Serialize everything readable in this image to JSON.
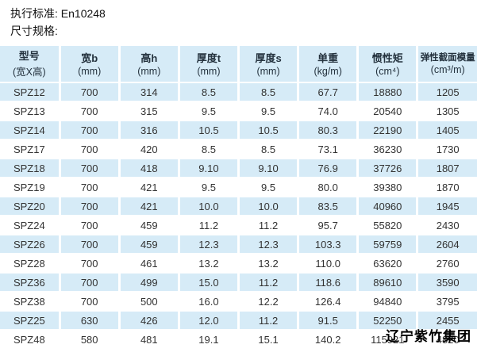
{
  "header": {
    "standard": "执行标准: En10248",
    "spec_title": "尺寸规格:"
  },
  "table": {
    "columns": [
      {
        "title": "型号",
        "unit": "(宽X高)"
      },
      {
        "title": "宽b",
        "unit": "(mm)"
      },
      {
        "title": "高h",
        "unit": "(mm)"
      },
      {
        "title": "厚度t",
        "unit": "(mm)"
      },
      {
        "title": "厚度s",
        "unit": "(mm)"
      },
      {
        "title": "单重",
        "unit": "(kg/m)"
      },
      {
        "title": "惯性矩",
        "unit": "(cm⁴)"
      },
      {
        "title": "弹性截面模量",
        "unit": "(cm³/m)"
      }
    ],
    "rows": [
      [
        "SPZ12",
        "700",
        "314",
        "8.5",
        "8.5",
        "67.7",
        "18880",
        "1205"
      ],
      [
        "SPZ13",
        "700",
        "315",
        "9.5",
        "9.5",
        "74.0",
        "20540",
        "1305"
      ],
      [
        "SPZ14",
        "700",
        "316",
        "10.5",
        "10.5",
        "80.3",
        "22190",
        "1405"
      ],
      [
        "SPZ17",
        "700",
        "420",
        "8.5",
        "8.5",
        "73.1",
        "36230",
        "1730"
      ],
      [
        "SPZ18",
        "700",
        "418",
        "9.10",
        "9.10",
        "76.9",
        "37726",
        "1807"
      ],
      [
        "SPZ19",
        "700",
        "421",
        "9.5",
        "9.5",
        "80.0",
        "39380",
        "1870"
      ],
      [
        "SPZ20",
        "700",
        "421",
        "10.0",
        "10.0",
        "83.5",
        "40960",
        "1945"
      ],
      [
        "SPZ24",
        "700",
        "459",
        "11.2",
        "11.2",
        "95.7",
        "55820",
        "2430"
      ],
      [
        "SPZ26",
        "700",
        "459",
        "12.3",
        "12.3",
        "103.3",
        "59759",
        "2604"
      ],
      [
        "SPZ28",
        "700",
        "461",
        "13.2",
        "13.2",
        "110.0",
        "63620",
        "2760"
      ],
      [
        "SPZ36",
        "700",
        "499",
        "15.0",
        "11.2",
        "118.6",
        "89610",
        "3590"
      ],
      [
        "SPZ38",
        "700",
        "500",
        "16.0",
        "12.2",
        "126.4",
        "94840",
        "3795"
      ],
      [
        "SPZ25",
        "630",
        "426",
        "12.0",
        "11.2",
        "91.5",
        "52250",
        "2455"
      ],
      [
        "SPZ48",
        "580",
        "481",
        "19.1",
        "15.1",
        "140.2",
        "115921",
        "4820"
      ]
    ]
  },
  "footer": {
    "company": "辽宁紫竹集团"
  },
  "colors": {
    "row_highlight": "#d6ebf7",
    "text": "#333333"
  }
}
